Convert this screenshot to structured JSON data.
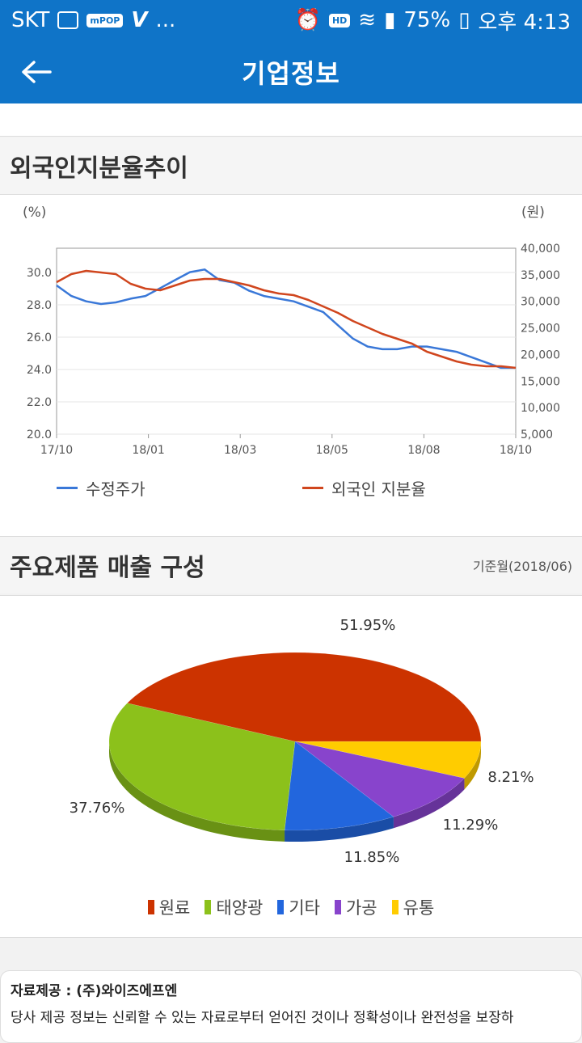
{
  "status": {
    "carrier": "SKT",
    "dots": "...",
    "hd": "HD",
    "battery": "75%",
    "time": "오후 4:13",
    "mpop": "mPOP"
  },
  "appbar": {
    "title": "기업정보"
  },
  "section1": {
    "title": "외국인지분율추이"
  },
  "section2": {
    "title": "주요제품 매출 구성",
    "base_month": "기준월(2018/06)"
  },
  "footer": {
    "line1": "자료제공 : (주)와이즈에프엔",
    "line2": "당사 제공 정보는 신뢰할 수 있는 자료로부터 얻어진 것이나 정확성이나 완전성을 보장하"
  },
  "chart_data": [
    {
      "type": "line",
      "ylabel_left": "(%)",
      "ylabel_right": "(원)",
      "x_ticks": [
        "17/10",
        "18/01",
        "18/03",
        "18/05",
        "18/08",
        "18/10"
      ],
      "y_left_ticks": [
        "30.0",
        "28.0",
        "26.0",
        "24.0",
        "22.0",
        "20.0"
      ],
      "y_right_ticks": [
        "40,000",
        "35,000",
        "30,000",
        "25,000",
        "20,000",
        "15,000",
        "10,000",
        "5,000"
      ],
      "ylim_left": [
        20,
        31.5
      ],
      "ylim_right": [
        5000,
        40000
      ],
      "series": [
        {
          "name": "수정주가",
          "axis": "right",
          "color": "#3a78d8",
          "values": [
            33000,
            31000,
            30000,
            29500,
            29800,
            30500,
            31000,
            32500,
            34000,
            35500,
            36000,
            34000,
            33500,
            32000,
            31000,
            30500,
            30000,
            29000,
            28000,
            25500,
            23000,
            21500,
            21000,
            21000,
            21500,
            21500,
            21000,
            20500,
            19500,
            18500,
            17500,
            17500
          ]
        },
        {
          "name": "외국인 지분율",
          "axis": "left",
          "color": "#d0461e",
          "values": [
            29.4,
            29.9,
            30.1,
            30.0,
            29.9,
            29.3,
            29.0,
            28.9,
            29.2,
            29.5,
            29.6,
            29.6,
            29.4,
            29.2,
            28.9,
            28.7,
            28.6,
            28.3,
            27.9,
            27.5,
            27.0,
            26.6,
            26.2,
            25.9,
            25.6,
            25.1,
            24.8,
            24.5,
            24.3,
            24.2,
            24.2,
            24.1
          ]
        }
      ],
      "grid": true,
      "legend_position": "bottom"
    },
    {
      "type": "pie",
      "slices": [
        {
          "name": "원료",
          "value": 51.95,
          "label": "51.95%",
          "color": "#cc3300"
        },
        {
          "name": "태양광",
          "value": 37.76,
          "label": "37.76%",
          "color": "#8cc11b"
        },
        {
          "name": "기타",
          "value": 11.85,
          "label": "11.85%",
          "color": "#2266dd"
        },
        {
          "name": "가공",
          "value": 11.29,
          "label": "11.29%",
          "color": "#8844cc"
        },
        {
          "name": "유통",
          "value": 8.21,
          "label": "8.21%",
          "color": "#ffcc00"
        }
      ],
      "legend_position": "bottom"
    }
  ]
}
